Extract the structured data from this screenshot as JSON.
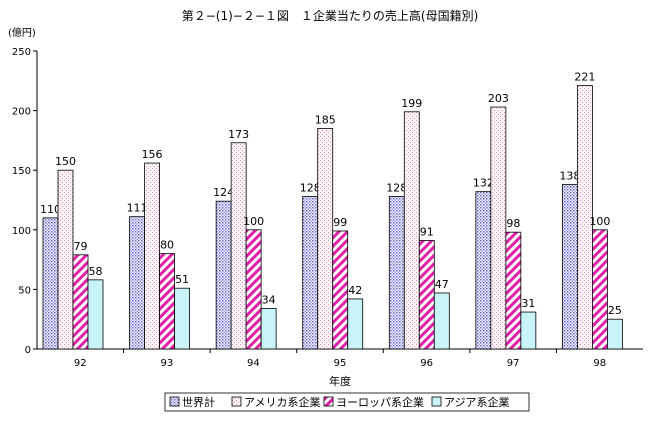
{
  "chart_data": {
    "type": "bar",
    "title": "第２−(1)−２−１図　１企業当たりの売上高(母国籍別)",
    "ylabel": "(億円)",
    "xlabel": "年度",
    "ylim": [
      0,
      250
    ],
    "yticks": [
      0,
      50,
      100,
      150,
      200,
      250
    ],
    "grid": false,
    "legend_position": "bottom",
    "categories": [
      "92",
      "93",
      "94",
      "95",
      "96",
      "97",
      "98"
    ],
    "series": [
      {
        "name": "世界計",
        "values": [
          110,
          111,
          124,
          128,
          128,
          132,
          138
        ],
        "color": "#8c8cd8",
        "pattern": "dots"
      },
      {
        "name": "アメリカ系企業",
        "values": [
          150,
          156,
          173,
          185,
          199,
          203,
          221
        ],
        "color": "#f0a8c0",
        "pattern": "fine-dots"
      },
      {
        "name": "ヨーロッパ系企業",
        "values": [
          79,
          80,
          100,
          99,
          91,
          98,
          100
        ],
        "color": "#e020a8",
        "pattern": "diagonal"
      },
      {
        "name": "アジア系企業",
        "values": [
          58,
          51,
          34,
          42,
          47,
          31,
          25
        ],
        "color": "#c8f4f8",
        "pattern": "solid"
      }
    ]
  }
}
